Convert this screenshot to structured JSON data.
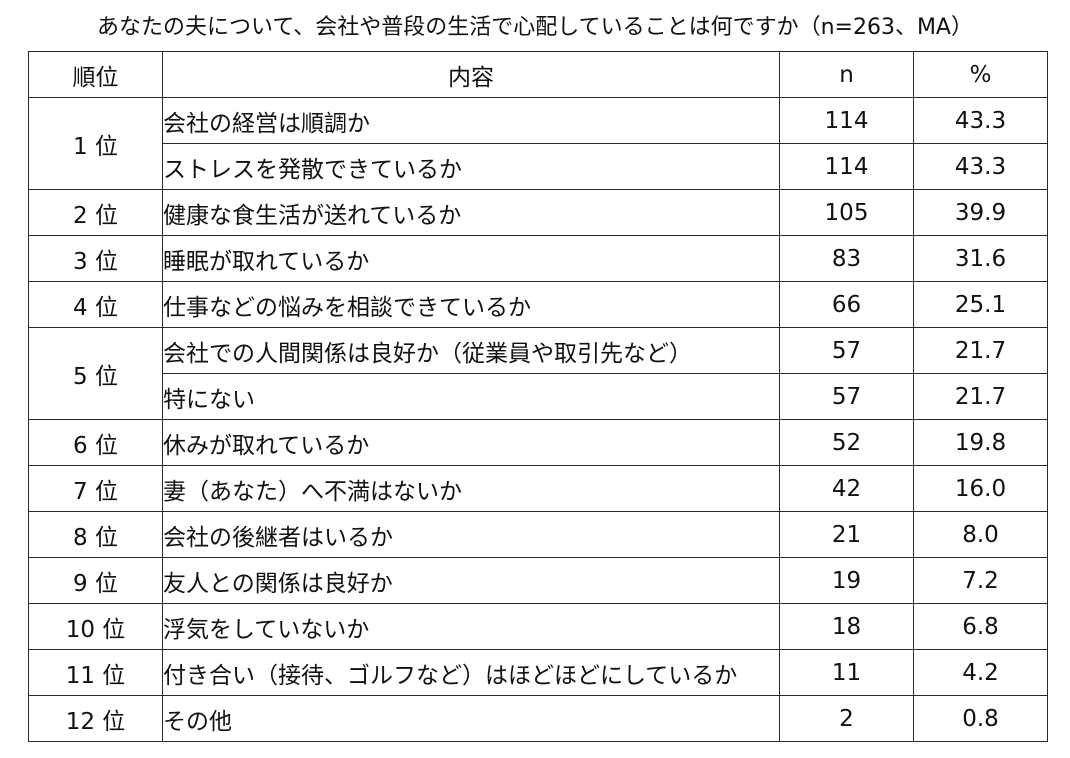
{
  "chart_data": {
    "type": "table",
    "title": "あなたの夫について、会社や普段の生活で心配していることは何ですか（n=263、MA）",
    "columns": [
      "順位",
      "内容",
      "n",
      "%"
    ],
    "rows": [
      {
        "rank": "1 位",
        "item": "会社の経営は順調か",
        "n": "114",
        "pct": "43.3"
      },
      {
        "rank": "1 位",
        "item": "ストレスを発散できているか",
        "n": "114",
        "pct": "43.3"
      },
      {
        "rank": "2 位",
        "item": "健康な食生活が送れているか",
        "n": "105",
        "pct": "39.9"
      },
      {
        "rank": "3 位",
        "item": "睡眠が取れているか",
        "n": "83",
        "pct": "31.6"
      },
      {
        "rank": "4 位",
        "item": "仕事などの悩みを相談できているか",
        "n": "66",
        "pct": "25.1"
      },
      {
        "rank": "5 位",
        "item": "会社での人間関係は良好か（従業員や取引先など）",
        "n": "57",
        "pct": "21.7"
      },
      {
        "rank": "5 位",
        "item": "特にない",
        "n": "57",
        "pct": "21.7"
      },
      {
        "rank": "6 位",
        "item": "休みが取れているか",
        "n": "52",
        "pct": "19.8"
      },
      {
        "rank": "7 位",
        "item": "妻（あなた）へ不満はないか",
        "n": "42",
        "pct": "16.0"
      },
      {
        "rank": "8 位",
        "item": "会社の後継者はいるか",
        "n": "21",
        "pct": "8.0"
      },
      {
        "rank": "9 位",
        "item": "友人との関係は良好か",
        "n": "19",
        "pct": "7.2"
      },
      {
        "rank": "10 位",
        "item": "浮気をしていないか",
        "n": "18",
        "pct": "6.8"
      },
      {
        "rank": "11 位",
        "item": "付き合い（接待、ゴルフなど）はほどほどにしているか",
        "n": "11",
        "pct": "4.2"
      },
      {
        "rank": "12 位",
        "item": "その他",
        "n": "2",
        "pct": "0.8"
      }
    ]
  }
}
